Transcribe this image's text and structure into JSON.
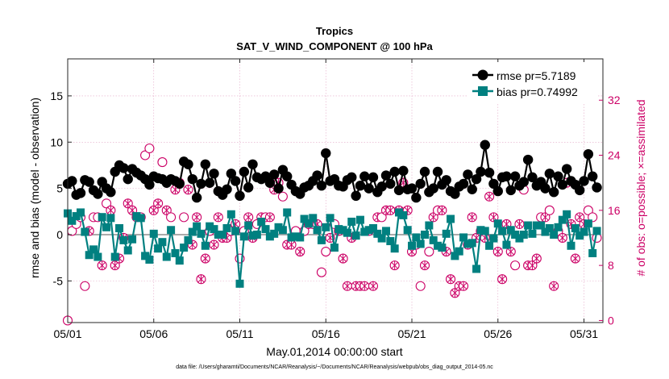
{
  "chart_data": {
    "type": "line",
    "title": "Tropics",
    "subtitle": "SAT_V_WIND_COMPONENT @ 100 hPa",
    "xlabel": "May.01,2014 00:00:00 start",
    "ylabel": "rmse and bias (model - observation)",
    "ylabel_right": "# of obs: o=possible; ×=assimilated",
    "x_tick_labels": [
      "05/01",
      "05/06",
      "05/11",
      "05/16",
      "05/21",
      "05/26",
      "05/31"
    ],
    "x_ticks": [
      1,
      6,
      11,
      16,
      21,
      26,
      31
    ],
    "xlim": [
      1,
      32.1
    ],
    "ylim": [
      -9.5,
      19
    ],
    "ylim_right": [
      -0.3,
      38
    ],
    "y_ticks": [
      -5,
      0,
      5,
      10,
      15
    ],
    "y_tick_labels": [
      "-5",
      "0",
      "5",
      "10",
      "15"
    ],
    "y_ticks_right": [
      0,
      8,
      16,
      24,
      32
    ],
    "y_tick_labels_right": [
      "0",
      "8",
      "16",
      "24",
      "32"
    ],
    "grid": true,
    "legend_position": "top-right",
    "colors": {
      "rmse": "#000000",
      "bias": "#008080",
      "obs": "#cc0066",
      "zero_line": "#aaaaaa",
      "grid": "#e3a7c6"
    },
    "series": [
      {
        "name": "rmse pr=5.7189",
        "color": "#000000",
        "x": [
          1.0,
          1.25,
          1.5,
          1.75,
          2.0,
          2.25,
          2.5,
          2.75,
          3.0,
          3.25,
          3.5,
          3.75,
          4.0,
          4.25,
          4.5,
          4.75,
          5.0,
          5.25,
          5.5,
          5.75,
          6.0,
          6.25,
          6.5,
          6.75,
          7.0,
          7.25,
          7.5,
          7.75,
          8.0,
          8.25,
          8.5,
          8.75,
          9.0,
          9.25,
          9.5,
          9.75,
          10.0,
          10.25,
          10.5,
          10.75,
          11.0,
          11.25,
          11.5,
          11.75,
          12.0,
          12.25,
          12.5,
          12.75,
          13.0,
          13.25,
          13.5,
          13.75,
          14.0,
          14.25,
          14.5,
          14.75,
          15.0,
          15.25,
          15.5,
          15.75,
          16.0,
          16.25,
          16.5,
          16.75,
          17.0,
          17.25,
          17.5,
          17.75,
          18.0,
          18.25,
          18.5,
          18.75,
          19.0,
          19.25,
          19.5,
          19.75,
          20.0,
          20.25,
          20.5,
          20.75,
          21.0,
          21.25,
          21.5,
          21.75,
          22.0,
          22.25,
          22.5,
          22.75,
          23.0,
          23.25,
          23.5,
          23.75,
          24.0,
          24.25,
          24.5,
          24.75,
          25.0,
          25.25,
          25.5,
          25.75,
          26.0,
          26.25,
          26.5,
          26.75,
          27.0,
          27.25,
          27.5,
          27.75,
          28.0,
          28.25,
          28.5,
          28.75,
          29.0,
          29.25,
          29.5,
          29.75,
          30.0,
          30.25,
          30.5,
          30.75,
          31.0,
          31.25,
          31.5,
          31.75
        ],
        "values": [
          5.5,
          5.8,
          4.3,
          4.5,
          5.9,
          5.7,
          4.8,
          4.4,
          5.7,
          5.0,
          4.6,
          6.8,
          7.5,
          7.2,
          6.0,
          7.1,
          6.7,
          6.4,
          6.0,
          5.4,
          6.3,
          6.1,
          6.0,
          5.6,
          6.0,
          5.8,
          5.5,
          7.9,
          7.6,
          6.0,
          4.0,
          5.5,
          7.6,
          5.6,
          6.6,
          4.7,
          4.3,
          4.9,
          6.6,
          5.8,
          4.2,
          6.8,
          5.1,
          7.6,
          6.2,
          6.0,
          6.3,
          5.6,
          6.5,
          5.0,
          7.0,
          6.3,
          5.4,
          4.7,
          4.4,
          5.1,
          5.3,
          5.8,
          6.4,
          5.3,
          8.8,
          5.8,
          6.0,
          5.3,
          5.2,
          5.9,
          6.2,
          4.2,
          5.3,
          6.3,
          5.0,
          6.2,
          4.6,
          5.2,
          6.4,
          5.5,
          6.8,
          4.8,
          6.9,
          4.9,
          5.0,
          4.0,
          5.5,
          6.8,
          4.6,
          5.0,
          6.8,
          5.4,
          5.9,
          4.7,
          4.4,
          5.2,
          5.5,
          6.5,
          4.9,
          6.0,
          6.8,
          9.7,
          6.7,
          5.5,
          4.7,
          6.2,
          6.3,
          4.8,
          6.3,
          5.3,
          5.7,
          8.1,
          6.2,
          5.3,
          5.7,
          5.0,
          6.6,
          4.6,
          6.3,
          5.4,
          7.1,
          5.8,
          5.4,
          4.8,
          5.8,
          8.7,
          6.3,
          5.1
        ]
      },
      {
        "name": "bias pr=0.74992",
        "color": "#008080",
        "x": [
          1.0,
          1.25,
          1.5,
          1.75,
          2.0,
          2.25,
          2.5,
          2.75,
          3.0,
          3.25,
          3.5,
          3.75,
          4.0,
          4.25,
          4.5,
          4.75,
          5.0,
          5.25,
          5.5,
          5.75,
          6.0,
          6.25,
          6.5,
          6.75,
          7.0,
          7.25,
          7.5,
          7.75,
          8.0,
          8.25,
          8.5,
          8.75,
          9.0,
          9.25,
          9.5,
          9.75,
          10.0,
          10.25,
          10.5,
          10.75,
          11.0,
          11.25,
          11.5,
          11.75,
          12.0,
          12.25,
          12.5,
          12.75,
          13.0,
          13.25,
          13.5,
          13.75,
          14.0,
          14.25,
          14.5,
          14.75,
          15.0,
          15.25,
          15.5,
          15.75,
          16.0,
          16.25,
          16.5,
          16.75,
          17.0,
          17.25,
          17.5,
          17.75,
          18.0,
          18.25,
          18.5,
          18.75,
          19.0,
          19.25,
          19.5,
          19.75,
          20.0,
          20.25,
          20.5,
          20.75,
          21.0,
          21.25,
          21.5,
          21.75,
          22.0,
          22.25,
          22.5,
          22.75,
          23.0,
          23.25,
          23.5,
          23.75,
          24.0,
          24.25,
          24.5,
          24.75,
          25.0,
          25.25,
          25.5,
          25.75,
          26.0,
          26.25,
          26.5,
          26.75,
          27.0,
          27.25,
          27.5,
          27.75,
          28.0,
          28.25,
          28.5,
          28.75,
          29.0,
          29.25,
          29.5,
          29.75,
          30.0,
          30.25,
          30.5,
          30.75,
          31.0,
          31.25,
          31.5,
          31.75
        ],
        "values": [
          2.3,
          1.5,
          2.0,
          2.4,
          0.3,
          -2.2,
          -1.6,
          -2.4,
          1.9,
          0.8,
          1.8,
          -2.4,
          0.7,
          -0.6,
          -1.7,
          -0.5,
          2.0,
          1.8,
          -2.3,
          -2.7,
          0.1,
          -1.5,
          -0.8,
          -2.4,
          0.5,
          -2.0,
          -2.8,
          -1.4,
          -0.6,
          0.3,
          0.9,
          0.1,
          -1.2,
          0.9,
          0.6,
          0.0,
          0.0,
          0.7,
          2.2,
          0.4,
          -5.3,
          -0.2,
          1.0,
          -0.1,
          0.0,
          1.4,
          0.6,
          -0.2,
          0.1,
          0.8,
          0.5,
          2.4,
          -0.3,
          -0.2,
          -0.3,
          1.7,
          1.2,
          1.8,
          0.5,
          -0.6,
          0.8,
          1.8,
          -1.4,
          0.6,
          0.5,
          0.2,
          1.4,
          -0.1,
          1.6,
          0.3,
          0.5,
          0.7,
          0.1,
          -0.4,
          0.4,
          -0.7,
          -1.5,
          2.4,
          2.1,
          0.5,
          -1.2,
          -0.3,
          -1.0,
          0.0,
          1.0,
          -0.6,
          -1.2,
          -1.4,
          0.1,
          1.7,
          -2.3,
          -1.8,
          -0.3,
          -1.0,
          -0.9,
          -3.7,
          0.5,
          0.4,
          -1.2,
          -0.4,
          1.2,
          0.4,
          -1.1,
          0.5,
          0.0,
          -0.4,
          0.0,
          1.0,
          0.1,
          1.0,
          1.0,
          0.3,
          0.7,
          0.0,
          0.8,
          1.6,
          2.2,
          -1.2,
          0.7,
          -0.1,
          0.3,
          1.2,
          -2.0,
          0.4
        ]
      },
      {
        "name": "obs possible",
        "color": "#cc0066",
        "x": [
          1.0,
          1.25,
          1.5,
          1.75,
          2.0,
          2.25,
          2.5,
          2.75,
          3.0,
          3.25,
          3.5,
          3.75,
          4.0,
          4.25,
          4.5,
          4.75,
          5.0,
          5.25,
          5.5,
          5.75,
          6.0,
          6.25,
          6.5,
          6.75,
          7.0,
          7.25,
          7.5,
          7.75,
          8.0,
          8.25,
          8.5,
          8.75,
          9.0,
          9.25,
          9.5,
          9.75,
          10.0,
          10.25,
          10.5,
          10.75,
          11.0,
          11.25,
          11.5,
          11.75,
          12.0,
          12.25,
          12.5,
          12.75,
          13.0,
          13.25,
          13.5,
          13.75,
          14.0,
          14.25,
          14.5,
          14.75,
          15.0,
          15.25,
          15.5,
          15.75,
          16.0,
          16.25,
          16.5,
          16.75,
          17.0,
          17.25,
          17.5,
          17.75,
          18.0,
          18.25,
          18.5,
          18.75,
          19.0,
          19.25,
          19.5,
          19.75,
          20.0,
          20.25,
          20.5,
          20.75,
          21.0,
          21.25,
          21.5,
          21.75,
          22.0,
          22.25,
          22.5,
          22.75,
          23.0,
          23.25,
          23.5,
          23.75,
          24.0,
          24.25,
          24.5,
          24.75,
          25.0,
          25.25,
          25.5,
          25.75,
          26.0,
          26.25,
          26.5,
          26.75,
          27.0,
          27.25,
          27.5,
          27.75,
          28.0,
          28.25,
          28.5,
          28.75,
          29.0,
          29.25,
          29.5,
          29.75,
          30.0,
          30.25,
          30.5,
          30.75,
          31.0,
          31.25,
          31.5,
          31.75
        ],
        "values": [
          0,
          13,
          14,
          15,
          5,
          13,
          15,
          15,
          8,
          17,
          16,
          8,
          9,
          12,
          17,
          16,
          15,
          15,
          24,
          25,
          16,
          17,
          23,
          16,
          15,
          19,
          20,
          15,
          19,
          11,
          15,
          6,
          9,
          13,
          11,
          15,
          12,
          12,
          13,
          14,
          9,
          13,
          15,
          12,
          14,
          15,
          15,
          15,
          19,
          20,
          18,
          11,
          11,
          13,
          10,
          13,
          14,
          14,
          14,
          7,
          10,
          12,
          14,
          13,
          9,
          5,
          12,
          5,
          5,
          5,
          13,
          5,
          15,
          15,
          16,
          16,
          8,
          16,
          20,
          16,
          10,
          11,
          5,
          8,
          10,
          15,
          16,
          16,
          10,
          6,
          4,
          5,
          5,
          11,
          15,
          12,
          13,
          12,
          18,
          15,
          10,
          6,
          14,
          10,
          8,
          14,
          19,
          8,
          8,
          9,
          15,
          15,
          16,
          5,
          13,
          12,
          20,
          14,
          9,
          15,
          14,
          16,
          15,
          12
        ]
      }
    ],
    "assimilated_x": [
      2.25,
      3.0,
      3.5,
      3.75,
      4.0,
      4.25,
      4.5,
      4.75,
      5.0,
      6.0,
      6.25,
      6.75,
      7.25,
      8.0,
      8.25,
      8.5,
      8.75,
      9.0,
      9.5,
      9.75,
      10.0,
      10.25,
      10.75,
      11.5,
      11.75,
      12.25,
      12.75,
      13.0,
      13.25,
      13.75,
      14.0,
      14.5,
      15.0,
      15.5,
      16.25,
      16.75,
      17.0,
      17.25,
      17.5,
      17.75,
      18.0,
      18.25,
      18.5,
      18.75,
      19.0,
      19.5,
      19.75,
      20.0,
      20.25,
      20.5,
      20.75,
      21.0,
      21.75,
      22.25,
      22.75,
      23.0,
      23.25,
      23.5,
      23.75,
      24.0,
      24.25,
      24.5,
      24.75,
      25.0,
      25.25,
      25.5,
      25.75,
      26.0,
      26.25,
      26.5,
      26.75,
      27.25,
      27.75,
      28.0,
      28.25,
      28.75,
      29.25,
      29.75,
      30.0,
      30.25,
      30.5,
      30.75,
      31.0
    ],
    "legend": [
      {
        "label": "rmse pr=5.7189"
      },
      {
        "label": "bias pr=0.74992"
      }
    ],
    "footer": "data file: /Users/gharamti/Documents/NCAR/Reanalysis/~/Documents/NCAR/Reanalysis/webpub/obs_diag_output_2014-05.nc"
  }
}
